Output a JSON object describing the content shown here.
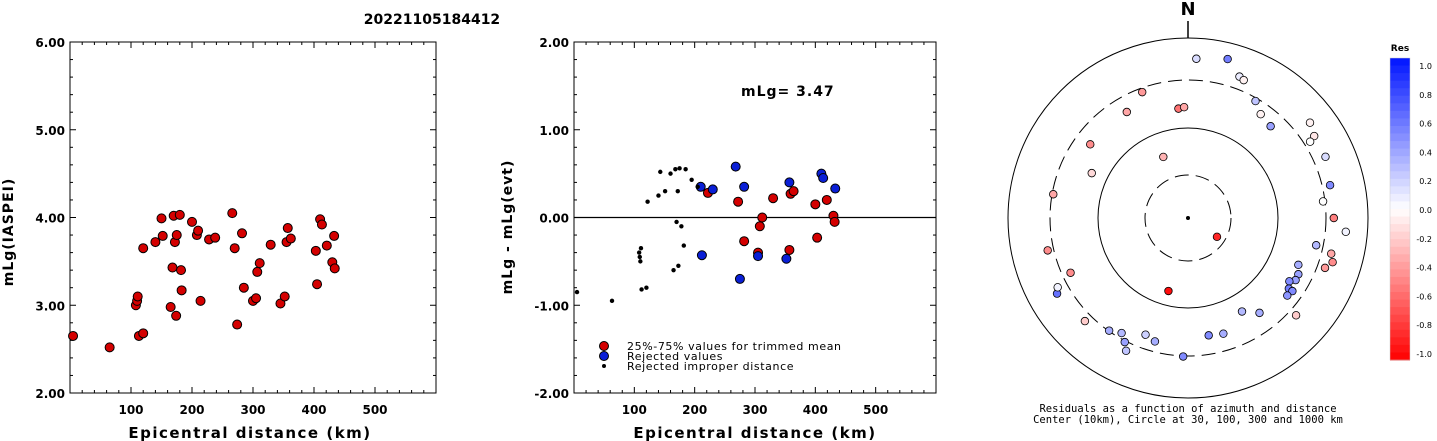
{
  "title": "20221105184412",
  "colors": {
    "accepted": "#d40000",
    "rejected": "#0a1fd6",
    "improper": "#000000",
    "edge": "#000000"
  },
  "chart_data": [
    {
      "type": "scatter",
      "id": "left",
      "xlabel": "Epicentral distance (km)",
      "ylabel": "mLg(IASPEI)",
      "xlim": [
        0,
        600
      ],
      "ylim": [
        2.0,
        6.0
      ],
      "xticks": [
        100,
        200,
        300,
        400,
        500
      ],
      "xtick_labels": [
        "100",
        "200",
        "300",
        "400",
        "500"
      ],
      "yticks": [
        2,
        3,
        4,
        5,
        6
      ],
      "ytick_labels": [
        "2.00",
        "3.00",
        "4.00",
        "5.00",
        "6.00"
      ],
      "grid": false,
      "series": [
        {
          "points": [
            [
              5,
              2.65
            ],
            [
              65,
              2.52
            ],
            [
              108,
              3.0
            ],
            [
              110,
              3.05
            ],
            [
              111,
              3.1
            ],
            [
              113,
              2.65
            ],
            [
              120,
              2.68
            ],
            [
              120,
              3.65
            ],
            [
              140,
              3.72
            ],
            [
              150,
              3.99
            ],
            [
              152,
              3.79
            ],
            [
              165,
              2.98
            ],
            [
              168,
              3.43
            ],
            [
              170,
              4.02
            ],
            [
              172,
              3.72
            ],
            [
              174,
              2.88
            ],
            [
              175,
              3.8
            ],
            [
              180,
              4.03
            ],
            [
              182,
              3.4
            ],
            [
              183,
              3.17
            ],
            [
              200,
              3.95
            ],
            [
              208,
              3.8
            ],
            [
              210,
              3.85
            ],
            [
              214,
              3.05
            ],
            [
              228,
              3.75
            ],
            [
              238,
              3.77
            ],
            [
              266,
              4.05
            ],
            [
              270,
              3.65
            ],
            [
              274,
              2.78
            ],
            [
              282,
              3.82
            ],
            [
              285,
              3.2
            ],
            [
              300,
              3.05
            ],
            [
              305,
              3.08
            ],
            [
              307,
              3.38
            ],
            [
              311,
              3.48
            ],
            [
              329,
              3.69
            ],
            [
              345,
              3.02
            ],
            [
              352,
              3.1
            ],
            [
              355,
              3.72
            ],
            [
              357,
              3.88
            ],
            [
              362,
              3.76
            ],
            [
              403,
              3.62
            ],
            [
              405,
              3.24
            ],
            [
              410,
              3.98
            ],
            [
              413,
              3.92
            ],
            [
              421,
              3.68
            ],
            [
              430,
              3.49
            ],
            [
              433,
              3.79
            ],
            [
              434,
              3.42
            ]
          ]
        }
      ]
    },
    {
      "type": "scatter",
      "id": "middle",
      "xlabel": "Epicentral distance (km)",
      "ylabel": "mLg - mLg(evt)",
      "xlim": [
        0,
        600
      ],
      "ylim": [
        -2.0,
        2.0
      ],
      "xticks": [
        100,
        200,
        300,
        400,
        500
      ],
      "xtick_labels": [
        "100",
        "200",
        "300",
        "400",
        "500"
      ],
      "yticks": [
        -2,
        -1,
        0,
        1,
        2
      ],
      "ytick_labels": [
        "-2.00",
        "-1.00",
        "0.00",
        "1.00",
        "2.00"
      ],
      "zero_line": 0,
      "annotation": "mLg= 3.47",
      "grid": false,
      "series": [
        {
          "name": "25%-75% values for trimmed mean",
          "color_key": "accepted",
          "marker": "large",
          "points": [
            [
              222,
              0.28
            ],
            [
              272,
              0.18
            ],
            [
              282,
              -0.27
            ],
            [
              305,
              -0.4
            ],
            [
              308,
              -0.1
            ],
            [
              312,
              0.0
            ],
            [
              330,
              0.22
            ],
            [
              357,
              -0.37
            ],
            [
              359,
              0.27
            ],
            [
              364,
              0.3
            ],
            [
              400,
              0.15
            ],
            [
              403,
              -0.23
            ],
            [
              419,
              0.2
            ],
            [
              430,
              0.02
            ],
            [
              432,
              -0.05
            ]
          ]
        },
        {
          "name": "Rejected values",
          "color_key": "rejected",
          "marker": "large",
          "points": [
            [
              210,
              0.35
            ],
            [
              212,
              -0.43
            ],
            [
              230,
              0.32
            ],
            [
              268,
              0.58
            ],
            [
              275,
              -0.7
            ],
            [
              282,
              0.35
            ],
            [
              305,
              -0.44
            ],
            [
              352,
              -0.47
            ],
            [
              357,
              0.4
            ],
            [
              410,
              0.5
            ],
            [
              413,
              0.45
            ],
            [
              433,
              0.33
            ]
          ]
        },
        {
          "name": "Rejected improper distance",
          "color_key": "improper",
          "marker": "small",
          "points": [
            [
              5,
              -0.85
            ],
            [
              63,
              -0.95
            ],
            [
              108,
              -0.4
            ],
            [
              109,
              -0.45
            ],
            [
              110,
              -0.5
            ],
            [
              111,
              -0.35
            ],
            [
              112,
              -0.82
            ],
            [
              120,
              -0.8
            ],
            [
              122,
              0.18
            ],
            [
              140,
              0.25
            ],
            [
              143,
              0.52
            ],
            [
              151,
              0.3
            ],
            [
              160,
              0.5
            ],
            [
              165,
              -0.6
            ],
            [
              168,
              0.55
            ],
            [
              170,
              -0.05
            ],
            [
              172,
              0.3
            ],
            [
              173,
              -0.55
            ],
            [
              175,
              0.56
            ],
            [
              178,
              -0.1
            ],
            [
              182,
              -0.32
            ],
            [
              185,
              0.55
            ],
            [
              195,
              0.43
            ],
            [
              205,
              0.35
            ]
          ]
        }
      ]
    },
    {
      "type": "scatter",
      "id": "polar",
      "projection": "azimuth-distance",
      "caption_line1": "Residuals as a function of azimuth and distance",
      "caption_line2": "Center (10km), Circle at 30, 100, 300 and 1000 km",
      "north_label": "N",
      "rings_km": [
        30,
        100,
        300,
        1000
      ],
      "colorbar": {
        "title": "Res",
        "ticks": [
          "1.0",
          "0.8",
          "0.6",
          "0.4",
          "0.2",
          "0.0",
          "-0.2",
          "-0.4",
          "-0.6",
          "-0.8",
          "-1.0"
        ],
        "range": [
          -1.0,
          1.0
        ],
        "positive_color": "#0014ff",
        "negative_color": "#ff0000"
      },
      "stations": [
        {
          "az": 3,
          "d": 443,
          "r": 0.15
        },
        {
          "az": 14,
          "d": 455,
          "r": 0.55
        },
        {
          "az": 20,
          "d": 418,
          "r": 0.08
        },
        {
          "az": 22,
          "d": 413,
          "r": -0.05
        },
        {
          "az": 30,
          "d": 375,
          "r": 0.25
        },
        {
          "az": 35,
          "d": 352,
          "r": -0.05
        },
        {
          "az": 42,
          "d": 343,
          "r": 0.4
        },
        {
          "az": 52,
          "d": 430,
          "r": -0.05
        },
        {
          "az": 57,
          "d": 418,
          "r": -0.1
        },
        {
          "az": 58,
          "d": 400,
          "r": 0.0
        },
        {
          "az": 66,
          "d": 418,
          "r": 0.15
        },
        {
          "az": 77,
          "d": 405,
          "r": 0.5
        },
        {
          "az": 83,
          "d": 378,
          "r": 0.0
        },
        {
          "az": 90,
          "d": 405,
          "r": -0.5
        },
        {
          "az": 95,
          "d": 440,
          "r": 0.05
        },
        {
          "az": 102,
          "d": 364,
          "r": 0.3
        },
        {
          "az": 104,
          "d": 410,
          "r": -0.35
        },
        {
          "az": 107,
          "d": 420,
          "r": -0.45
        },
        {
          "az": 110,
          "d": 405,
          "r": -0.4
        },
        {
          "az": 113,
          "d": 333,
          "r": 0.35
        },
        {
          "az": 117,
          "d": 344,
          "r": 0.4
        },
        {
          "az": 120,
          "d": 345,
          "r": 0.4
        },
        {
          "az": 122,
          "d": 332,
          "r": 0.5
        },
        {
          "az": 125,
          "d": 342,
          "r": 0.55
        },
        {
          "az": 125,
          "d": 354,
          "r": 0.5
        },
        {
          "az": 128,
          "d": 350,
          "r": 0.45
        },
        {
          "az": 132,
          "d": 404,
          "r": -0.2
        },
        {
          "az": 143,
          "d": 330,
          "r": 0.35
        },
        {
          "az": 150,
          "d": 300,
          "r": 0.3
        },
        {
          "az": 163,
          "d": 336,
          "r": 0.35
        },
        {
          "az": 170,
          "d": 331,
          "r": 0.5
        },
        {
          "az": 182,
          "d": 385,
          "r": 0.5
        },
        {
          "az": 195,
          "d": 355,
          "r": 0.35
        },
        {
          "az": 200,
          "d": 345,
          "r": 0.2
        },
        {
          "az": 205,
          "d": 407,
          "r": 0.25
        },
        {
          "az": 207,
          "d": 387,
          "r": 0.4
        },
        {
          "az": 210,
          "d": 369,
          "r": 0.3
        },
        {
          "az": 215,
          "d": 382,
          "r": 0.35
        },
        {
          "az": 225,
          "d": 405,
          "r": -0.2
        },
        {
          "az": 240,
          "d": 420,
          "r": 0.6
        },
        {
          "az": 245,
          "d": 360,
          "r": -0.45
        },
        {
          "az": 257,
          "d": 400,
          "r": -0.45
        },
        {
          "az": 280,
          "d": 380,
          "r": -0.35
        },
        {
          "az": 295,
          "d": 295,
          "r": -0.15
        },
        {
          "az": 307,
          "d": 340,
          "r": -0.45
        },
        {
          "az": 330,
          "d": 340,
          "r": -0.35
        },
        {
          "az": 338,
          "d": 183,
          "r": -0.3
        },
        {
          "az": 340,
          "d": 372,
          "r": -0.4
        },
        {
          "az": 355,
          "d": 305,
          "r": -0.55
        },
        {
          "az": 358,
          "d": 308,
          "r": -0.35
        },
        {
          "az": 123,
          "d": 96,
          "r": -0.85
        },
        {
          "az": 195,
          "d": 210,
          "r": -0.95
        },
        {
          "az": 242,
          "d": 410,
          "r": 0.05
        }
      ]
    }
  ],
  "legend": [
    {
      "label": "25%-75% values for trimmed mean",
      "color_key": "accepted"
    },
    {
      "label": "Rejected values",
      "color_key": "rejected"
    },
    {
      "label": "Rejected improper distance",
      "color_key": "improper"
    }
  ]
}
